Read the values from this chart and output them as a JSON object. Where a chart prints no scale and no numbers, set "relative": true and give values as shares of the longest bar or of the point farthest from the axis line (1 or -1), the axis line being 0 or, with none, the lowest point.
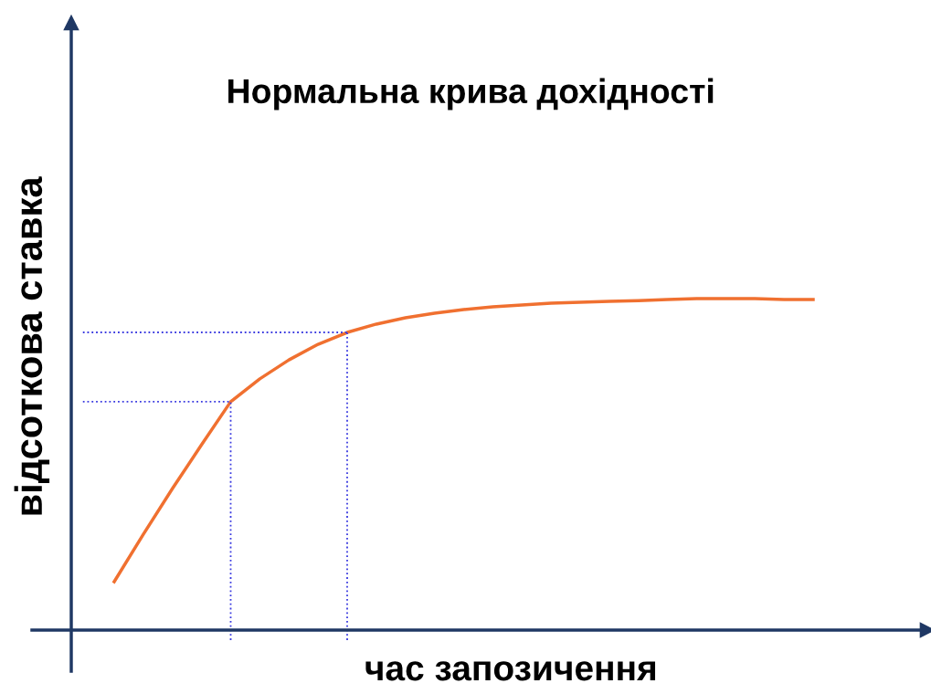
{
  "chart_data": {
    "type": "line",
    "title": "Нормальна крива дохідності",
    "xlabel": "час запозичення",
    "ylabel": "відсоткова ставка",
    "relative": true,
    "categories": [
      null,
      null,
      null,
      null,
      null,
      null,
      null,
      null,
      null,
      null,
      null,
      null,
      null,
      null,
      null,
      null,
      null,
      null,
      null,
      null,
      null,
      null,
      null,
      null,
      null
    ],
    "series": [
      {
        "color": "#f07030",
        "values": [
          0.146,
          0.289,
          0.427,
          0.559,
          0.689,
          0.758,
          0.815,
          0.862,
          0.898,
          0.923,
          0.942,
          0.956,
          0.967,
          0.975,
          0.981,
          0.986,
          0.989,
          0.992,
          0.994,
          0.997,
          1,
          1,
          1,
          0.997,
          0.997
        ]
      }
    ],
    "ref_lines": [
      {
        "axis": "y",
        "value": 0.689,
        "color": "#3a3ae0",
        "line_style": "dotted"
      },
      {
        "axis": "y",
        "value": 0.898,
        "color": "#3a3ae0",
        "line_style": "dotted"
      }
    ],
    "marker": "none",
    "line_style": "solid"
  }
}
